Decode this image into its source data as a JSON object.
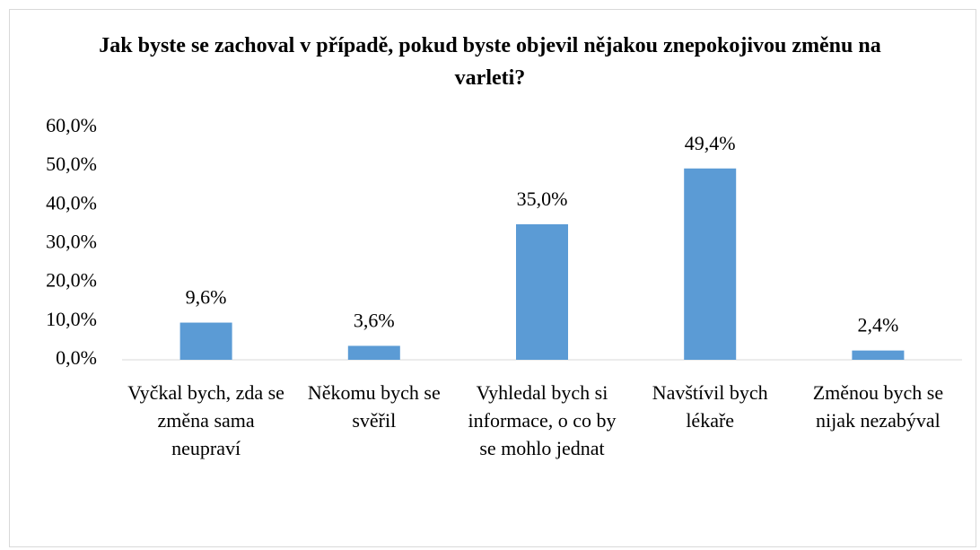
{
  "chart_data": {
    "type": "bar",
    "title": "Jak byste se zachoval v případě, pokud byste objevil nějakou znepokojivou změnu na varleti?",
    "categories": [
      "Vyčkal bych, zda se změna sama neupraví",
      "Někomu bych se svěřil",
      "Vyhledal bych si informace, o co by se mohlo jednat",
      "Navštívil bych lékaře",
      "Změnou bych se nijak nezabýval"
    ],
    "values": [
      9.6,
      3.6,
      35.0,
      49.4,
      2.4
    ],
    "value_labels": [
      "9,6%",
      "3,6%",
      "35,0%",
      "49,4%",
      "2,4%"
    ],
    "color": "#5b9bd5",
    "ylim": [
      0,
      60
    ],
    "yticks": [
      {
        "value": 0,
        "label": "0,0%"
      },
      {
        "value": 10,
        "label": "10,0%"
      },
      {
        "value": 20,
        "label": "20,0%"
      },
      {
        "value": 30,
        "label": "30,0%"
      },
      {
        "value": 40,
        "label": "40,0%"
      },
      {
        "value": 50,
        "label": "50,0%"
      },
      {
        "value": 60,
        "label": "60,0%"
      }
    ],
    "grid": false
  }
}
